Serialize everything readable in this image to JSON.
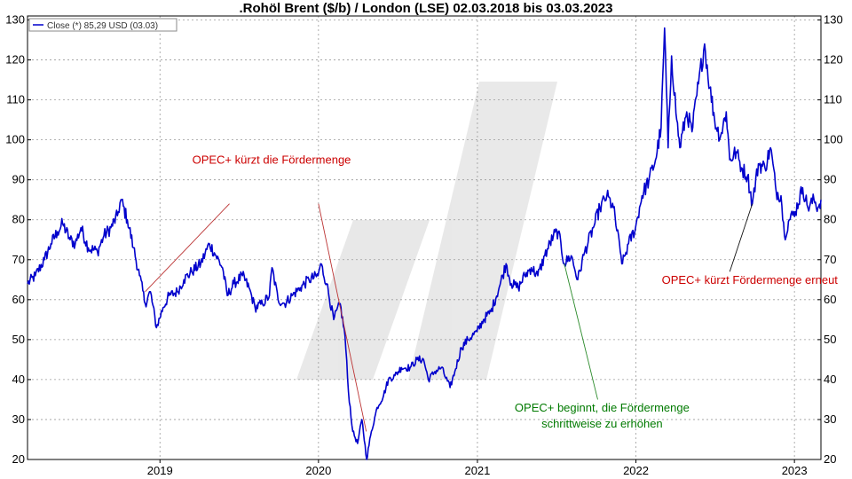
{
  "chart_data": {
    "type": "line",
    "title": ".Rohöl Brent ($/b) / London (LSE) 02.03.2018 bis 03.03.2023",
    "legend": {
      "label": "Close (*) 85,29 USD (03.03)",
      "placement": "top-left"
    },
    "grid": true,
    "ylim": [
      20,
      131
    ],
    "yticks": [
      20,
      30,
      40,
      50,
      60,
      70,
      80,
      90,
      100,
      110,
      120,
      130
    ],
    "xlim": [
      "2018-03-02",
      "2023-03-03"
    ],
    "xticks": [
      {
        "label": "2019",
        "date": "2019-01-01"
      },
      {
        "label": "2020",
        "date": "2020-01-01"
      },
      {
        "label": "2021",
        "date": "2021-01-01"
      },
      {
        "label": "2022",
        "date": "2022-01-01"
      },
      {
        "label": "2023",
        "date": "2023-01-01"
      }
    ],
    "series": [
      {
        "color": "#0000cc",
        "points": [
          [
            "2018-03-02",
            64
          ],
          [
            "2018-03-20",
            66
          ],
          [
            "2018-04-10",
            70
          ],
          [
            "2018-04-25",
            74
          ],
          [
            "2018-05-10",
            77
          ],
          [
            "2018-05-22",
            79
          ],
          [
            "2018-06-08",
            75
          ],
          [
            "2018-06-20",
            74
          ],
          [
            "2018-07-03",
            78
          ],
          [
            "2018-07-20",
            73
          ],
          [
            "2018-08-10",
            72
          ],
          [
            "2018-08-25",
            76
          ],
          [
            "2018-09-10",
            78
          ],
          [
            "2018-09-25",
            81
          ],
          [
            "2018-10-03",
            85
          ],
          [
            "2018-10-18",
            80
          ],
          [
            "2018-11-01",
            73
          ],
          [
            "2018-11-15",
            66
          ],
          [
            "2018-11-28",
            59
          ],
          [
            "2018-12-10",
            62
          ],
          [
            "2018-12-24",
            53
          ],
          [
            "2019-01-08",
            58
          ],
          [
            "2019-01-22",
            61
          ],
          [
            "2019-02-10",
            62
          ],
          [
            "2019-02-25",
            65
          ],
          [
            "2019-03-15",
            67
          ],
          [
            "2019-04-05",
            69
          ],
          [
            "2019-04-25",
            74
          ],
          [
            "2019-05-10",
            71
          ],
          [
            "2019-05-25",
            68
          ],
          [
            "2019-06-05",
            61
          ],
          [
            "2019-06-20",
            64
          ],
          [
            "2019-07-10",
            66
          ],
          [
            "2019-07-25",
            63
          ],
          [
            "2019-08-08",
            58
          ],
          [
            "2019-08-25",
            59
          ],
          [
            "2019-09-10",
            61
          ],
          [
            "2019-09-16",
            68
          ],
          [
            "2019-09-30",
            60
          ],
          [
            "2019-10-15",
            59
          ],
          [
            "2019-11-01",
            61
          ],
          [
            "2019-11-20",
            63
          ],
          [
            "2019-12-10",
            65
          ],
          [
            "2019-12-31",
            66
          ],
          [
            "2020-01-06",
            69
          ],
          [
            "2020-01-20",
            64
          ],
          [
            "2020-02-05",
            55
          ],
          [
            "2020-02-20",
            59
          ],
          [
            "2020-03-02",
            51
          ],
          [
            "2020-03-10",
            37
          ],
          [
            "2020-03-20",
            27
          ],
          [
            "2020-03-31",
            24
          ],
          [
            "2020-04-10",
            30
          ],
          [
            "2020-04-21",
            20
          ],
          [
            "2020-04-30",
            26
          ],
          [
            "2020-05-15",
            33
          ],
          [
            "2020-05-30",
            36
          ],
          [
            "2020-06-10",
            40
          ],
          [
            "2020-06-25",
            41
          ],
          [
            "2020-07-10",
            43
          ],
          [
            "2020-07-30",
            43
          ],
          [
            "2020-08-15",
            45
          ],
          [
            "2020-08-30",
            45
          ],
          [
            "2020-09-10",
            40
          ],
          [
            "2020-09-25",
            42
          ],
          [
            "2020-10-10",
            43
          ],
          [
            "2020-10-30",
            38
          ],
          [
            "2020-11-10",
            42
          ],
          [
            "2020-11-25",
            48
          ],
          [
            "2020-12-10",
            50
          ],
          [
            "2020-12-31",
            52
          ],
          [
            "2021-01-15",
            55
          ],
          [
            "2021-02-01",
            57
          ],
          [
            "2021-02-20",
            63
          ],
          [
            "2021-03-08",
            69
          ],
          [
            "2021-03-20",
            64
          ],
          [
            "2021-04-05",
            63
          ],
          [
            "2021-04-20",
            66
          ],
          [
            "2021-05-05",
            68
          ],
          [
            "2021-05-20",
            66
          ],
          [
            "2021-06-05",
            71
          ],
          [
            "2021-06-25",
            76
          ],
          [
            "2021-07-06",
            77
          ],
          [
            "2021-07-20",
            69
          ],
          [
            "2021-08-05",
            71
          ],
          [
            "2021-08-20",
            65
          ],
          [
            "2021-09-05",
            72
          ],
          [
            "2021-09-25",
            78
          ],
          [
            "2021-10-10",
            83
          ],
          [
            "2021-10-26",
            86
          ],
          [
            "2021-11-10",
            83
          ],
          [
            "2021-11-26",
            72
          ],
          [
            "2021-12-01",
            69
          ],
          [
            "2021-12-15",
            74
          ],
          [
            "2021-12-31",
            78
          ],
          [
            "2022-01-15",
            86
          ],
          [
            "2022-01-31",
            90
          ],
          [
            "2022-02-15",
            95
          ],
          [
            "2022-02-28",
            103
          ],
          [
            "2022-03-08",
            128
          ],
          [
            "2022-03-16",
            98
          ],
          [
            "2022-03-24",
            121
          ],
          [
            "2022-04-05",
            105
          ],
          [
            "2022-04-12",
            98
          ],
          [
            "2022-04-28",
            107
          ],
          [
            "2022-05-10",
            102
          ],
          [
            "2022-05-25",
            114
          ],
          [
            "2022-06-08",
            124
          ],
          [
            "2022-06-20",
            113
          ],
          [
            "2022-07-05",
            103
          ],
          [
            "2022-07-15",
            101
          ],
          [
            "2022-07-28",
            107
          ],
          [
            "2022-08-05",
            95
          ],
          [
            "2022-08-20",
            97
          ],
          [
            "2022-09-01",
            93
          ],
          [
            "2022-09-15",
            91
          ],
          [
            "2022-09-26",
            84
          ],
          [
            "2022-10-10",
            94
          ],
          [
            "2022-10-25",
            93
          ],
          [
            "2022-11-07",
            98
          ],
          [
            "2022-11-20",
            87
          ],
          [
            "2022-12-01",
            86
          ],
          [
            "2022-12-09",
            76
          ],
          [
            "2022-12-20",
            80
          ],
          [
            "2023-01-03",
            82
          ],
          [
            "2023-01-20",
            88
          ],
          [
            "2023-02-01",
            83
          ],
          [
            "2023-02-15",
            85
          ],
          [
            "2023-02-24",
            83
          ],
          [
            "2023-03-03",
            85
          ]
        ]
      }
    ],
    "annotations": [
      {
        "text": "OPEC+ kürzt die Fördermenge",
        "color": "#cc0000",
        "text_anchor_at": [
          "2019-09-15",
          94
        ],
        "arrows": [
          {
            "from": [
              "2019-06-10",
              84
            ],
            "to": [
              "2018-11-28",
              62
            ]
          },
          {
            "from": [
              "2020-01-01",
              84
            ],
            "to": [
              "2020-04-20",
              27
            ]
          }
        ]
      },
      {
        "text": "OPEC+ kürzt Fördermenge erneut",
        "color": "#cc0000",
        "text_anchor_at": [
          "2022-09-20",
          64
        ],
        "arrows": [
          {
            "from": [
              "2022-08-05",
              67
            ],
            "to": [
              "2022-09-26",
              84
            ]
          }
        ]
      },
      {
        "text": "OPEC+ beginnt, die Fördermenge",
        "text2": "schrittweise zu erhöhen",
        "color": "#007a00",
        "text_anchor_at": [
          "2021-10-15",
          32
        ],
        "arrows": [
          {
            "from": [
              "2021-10-05",
              35
            ],
            "to": [
              "2021-07-20",
              69
            ]
          }
        ]
      }
    ]
  }
}
